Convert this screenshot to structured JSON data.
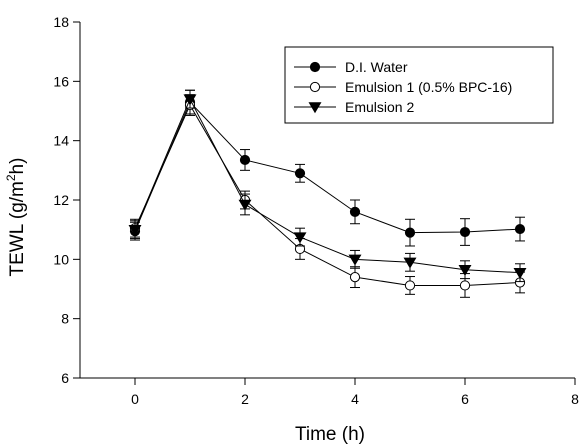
{
  "chart_data": {
    "type": "line",
    "title": "",
    "xlabel": "Time (h)",
    "ylabel_main": "TEWL (g/m",
    "ylabel_sup": "2",
    "ylabel_tail": "h)",
    "xlim": [
      -1,
      8
    ],
    "ylim": [
      6,
      18
    ],
    "xticks": [
      0,
      2,
      4,
      6,
      8
    ],
    "yticks": [
      6,
      8,
      10,
      12,
      14,
      16,
      18
    ],
    "grid": false,
    "legend_position": "top-right",
    "series": [
      {
        "name": "D.I. Water",
        "marker": "filled-circle",
        "x": [
          0,
          1,
          2,
          3,
          4,
          5,
          6,
          7
        ],
        "y": [
          10.95,
          15.3,
          13.35,
          12.9,
          11.6,
          10.9,
          10.92,
          11.02
        ],
        "err": [
          0.3,
          0.4,
          0.35,
          0.3,
          0.4,
          0.45,
          0.45,
          0.4
        ]
      },
      {
        "name": "Emulsion 1 (0.5% BPC-16)",
        "marker": "open-circle",
        "x": [
          0,
          1,
          2,
          3,
          4,
          5,
          6,
          7
        ],
        "y": [
          11.05,
          15.2,
          12.0,
          10.35,
          9.4,
          9.12,
          9.12,
          9.22
        ],
        "err": [
          0.3,
          0.35,
          0.3,
          0.35,
          0.35,
          0.3,
          0.4,
          0.35
        ]
      },
      {
        "name": "Emulsion 2",
        "marker": "filled-triangle-down",
        "x": [
          0,
          1,
          2,
          3,
          4,
          5,
          6,
          7
        ],
        "y": [
          11.0,
          15.4,
          11.85,
          10.75,
          10.0,
          9.9,
          9.65,
          9.55
        ],
        "err": [
          0.3,
          0.3,
          0.35,
          0.3,
          0.3,
          0.3,
          0.3,
          0.3
        ]
      }
    ]
  }
}
